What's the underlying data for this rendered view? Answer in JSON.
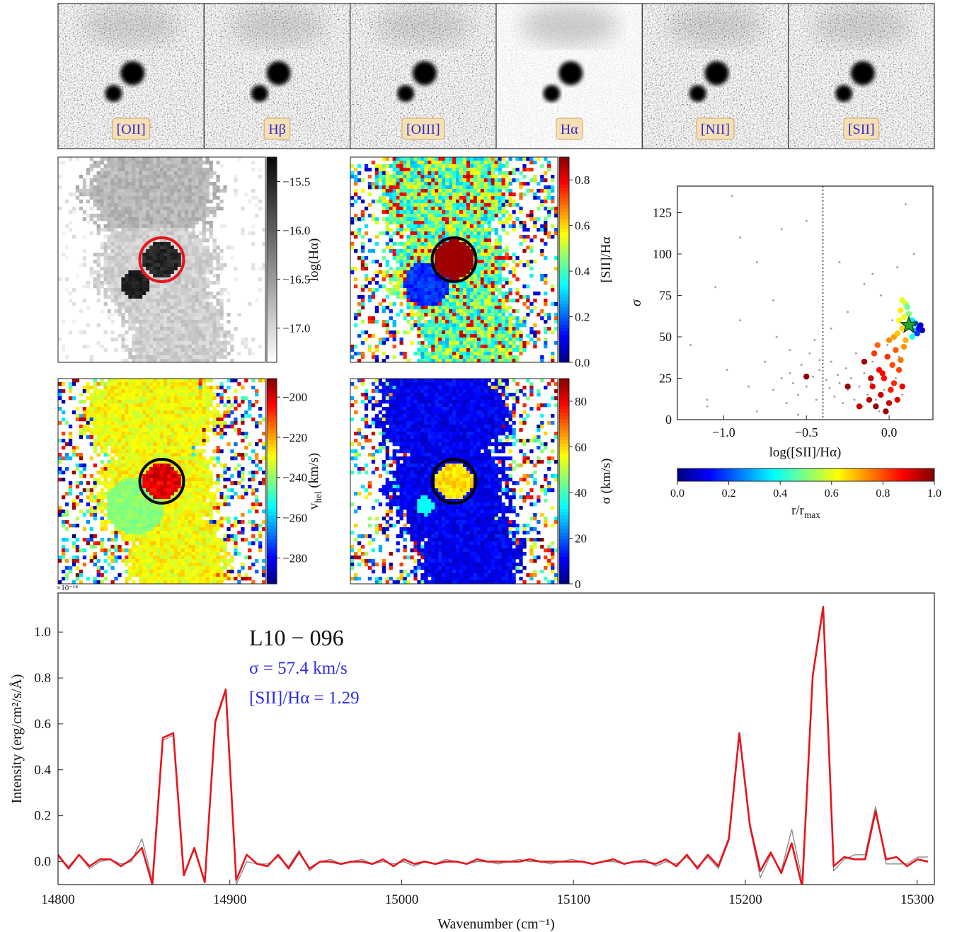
{
  "chart_data": [
    {
      "type": "images",
      "labels": [
        "[OII]",
        "Hβ",
        "[OIII]",
        "Hα",
        "[NII]",
        "[SII]"
      ]
    },
    {
      "type": "map",
      "cmap": "Greys",
      "marker_color": "#e8141c",
      "colorbar_label": "log(Hα)",
      "ylim": [
        -17.35,
        -15.25
      ],
      "yticks": [
        {
          "value": -15.5,
          "label": "−15.5"
        },
        {
          "value": -16,
          "label": "−16.0"
        },
        {
          "value": -16.5,
          "label": "−16.5"
        },
        {
          "value": -17,
          "label": "−17.0"
        }
      ]
    },
    {
      "type": "map",
      "cmap": "jet",
      "marker_color": "#000000",
      "colorbar_label": "[SII]/Hα",
      "ylim": [
        0,
        0.9
      ],
      "yticks": [
        {
          "value": 0,
          "label": "0.0"
        },
        0.2,
        0.4,
        0.6,
        0.8
      ]
    },
    {
      "type": "map",
      "cmap": "jet",
      "marker_color": "#000000",
      "colorbar_label": "v",
      "colorbar_label_sub": "hel",
      "colorbar_label_tail": " (km/s)",
      "ylim": [
        -292.9,
        -190.8
      ],
      "yticks": [
        {
          "value": -200,
          "label": "−200"
        },
        {
          "value": -220,
          "label": "−220"
        },
        {
          "value": -240,
          "label": "−240"
        },
        {
          "value": -260,
          "label": "−260"
        },
        {
          "value": -280,
          "label": "−280"
        }
      ]
    },
    {
      "type": "map",
      "cmap": "jet",
      "marker_color": "#000000",
      "colorbar_label": "σ (km/s)",
      "ylim": [
        0,
        89.9
      ],
      "yticks": [
        0,
        20,
        40,
        60,
        80
      ]
    },
    {
      "type": "scatter",
      "xlabel": "log([SII]/Hα)",
      "ylabel": "σ",
      "xlim": [
        -1.28,
        0.265
      ],
      "ylim": [
        0,
        141
      ],
      "xticks": [
        {
          "value": -1,
          "label": "−1.0"
        },
        {
          "value": -0.5,
          "label": "−0.5"
        },
        {
          "value": 0,
          "label": "0.0"
        }
      ],
      "yticks": [
        0,
        25,
        50,
        75,
        100,
        125
      ],
      "vline": -0.4,
      "background": {
        "color": "#a3a3a3",
        "x": [
          -1.2,
          -1.1,
          -1.05,
          -0.98,
          -0.9,
          -0.85,
          -0.8,
          -0.75,
          -0.7,
          -0.68,
          -0.65,
          -0.62,
          -0.6,
          -0.58,
          -0.55,
          -0.53,
          -0.5,
          -0.48,
          -0.46,
          -0.44,
          -0.42,
          -0.4,
          -0.38,
          -0.36,
          -0.35,
          -0.33,
          -0.31,
          -0.3,
          -0.28,
          -0.26,
          -0.25,
          -0.23,
          -0.21,
          -0.2,
          -0.18,
          -0.16,
          -0.15,
          -0.13,
          -0.11,
          -0.1,
          -0.08,
          -0.06,
          -0.05,
          -0.03,
          -0.01,
          0.0,
          0.02,
          0.04,
          0.06,
          0.08,
          -0.9,
          -0.7,
          -0.5,
          -0.3,
          -0.1,
          0.1,
          -1.1,
          -0.8,
          -0.6,
          -0.45,
          -0.25,
          -0.05,
          0.15,
          -0.95,
          -0.65,
          -0.35,
          -0.15,
          0.05,
          -0.55,
          -0.42
        ],
        "y": [
          45,
          12,
          80,
          30,
          60,
          20,
          95,
          35,
          18,
          50,
          25,
          10,
          28,
          22,
          15,
          33,
          20,
          40,
          26,
          12,
          30,
          8,
          24,
          19,
          35,
          14,
          27,
          22,
          10,
          31,
          18,
          25,
          12,
          40,
          20,
          8,
          28,
          15,
          22,
          35,
          12,
          5,
          30,
          18,
          45,
          10,
          60,
          25,
          38,
          15,
          110,
          72,
          120,
          95,
          88,
          130,
          8,
          5,
          42,
          48,
          65,
          75,
          100,
          135,
          115,
          55,
          82,
          92,
          3,
          36
        ]
      },
      "points": {
        "cmap": "jet",
        "x": [
          -0.12,
          -0.1,
          -0.08,
          -0.06,
          -0.05,
          -0.03,
          -0.02,
          0.0,
          0.01,
          0.03,
          -0.15,
          -0.09,
          -0.04,
          0.02,
          0.05,
          -0.07,
          -0.01,
          0.04,
          0.06,
          0.08,
          -0.11,
          0.0,
          0.03,
          0.07,
          0.09,
          0.05,
          0.08,
          0.1,
          0.06,
          0.09,
          0.11,
          0.07,
          0.1,
          0.12,
          0.08,
          0.11,
          0.13,
          0.14,
          0.15,
          0.16,
          0.17,
          0.18,
          0.19,
          0.2,
          0.14,
          -0.5,
          -0.25,
          -0.18
        ],
        "y": [
          12,
          20,
          8,
          30,
          15,
          25,
          5,
          10,
          18,
          22,
          35,
          40,
          28,
          33,
          12,
          45,
          38,
          42,
          30,
          20,
          25,
          48,
          50,
          36,
          44,
          52,
          55,
          48,
          60,
          62,
          58,
          66,
          70,
          64,
          72,
          68,
          56,
          60,
          54,
          58,
          52,
          55,
          57,
          54,
          50,
          26,
          20,
          8
        ],
        "c": [
          0.95,
          0.9,
          0.98,
          0.88,
          0.92,
          0.86,
          0.97,
          0.93,
          0.85,
          0.84,
          0.96,
          0.82,
          0.87,
          0.8,
          0.91,
          0.78,
          0.83,
          0.79,
          0.81,
          0.89,
          0.94,
          0.74,
          0.72,
          0.76,
          0.73,
          0.68,
          0.66,
          0.7,
          0.62,
          0.6,
          0.58,
          0.64,
          0.56,
          0.5,
          0.6,
          0.48,
          0.42,
          0.36,
          0.3,
          0.22,
          0.18,
          0.12,
          0.08,
          0.05,
          0.4,
          0.99,
          0.97,
          0.93
        ]
      },
      "star": {
        "x": 0.12,
        "y": 57,
        "color": "#2ca02c"
      },
      "colorbar": {
        "label": "r/r",
        "label_sub": "max",
        "lim": [
          0,
          1
        ],
        "ticks": [
          {
            "value": 0,
            "label": "0.0"
          },
          0.2,
          0.4,
          0.6,
          0.8,
          {
            "value": 1,
            "label": "1.0"
          }
        ]
      }
    },
    {
      "type": "line",
      "xlabel": "Wavenumber (cm⁻¹)",
      "ylabel": "Intensity (erg/cm²/s/Å)",
      "y_offset_label": "×10⁻¹⁴",
      "xlim": [
        14800,
        15310
      ],
      "ylim": [
        -0.1,
        1.17
      ],
      "xticks": [
        14800,
        14900,
        15000,
        15100,
        15200,
        15300
      ],
      "yticks": [
        {
          "value": 0,
          "label": "0.0"
        },
        0.2,
        0.4,
        0.6,
        0.8,
        {
          "value": 1,
          "label": "1.0"
        }
      ],
      "annotations": [
        {
          "text": "L10 − 096",
          "color": "#111111"
        },
        {
          "text": "σ = 57.4 km/s",
          "color": "#2b2bea"
        },
        {
          "text": "[SII]/Hα = 1.29",
          "color": "#2b2bea"
        }
      ],
      "x": [
        14800.0,
        14806.1,
        14812.2,
        14818.3,
        14824.4,
        14830.5,
        14836.6,
        14842.7,
        14848.8,
        14854.9,
        14861.0,
        14867.1,
        14873.2,
        14879.3,
        14885.4,
        14891.5,
        14897.6,
        14903.7,
        14909.8,
        14915.9,
        14922.0,
        14928.1,
        14934.2,
        14940.3,
        14946.4,
        14952.5,
        14958.6,
        14964.7,
        14970.8,
        14976.9,
        14983.0,
        14989.1,
        14995.2,
        15001.3,
        15007.4,
        15013.5,
        15019.6,
        15025.7,
        15031.8,
        15037.9,
        15044.0,
        15050.1,
        15056.2,
        15062.3,
        15068.4,
        15074.5,
        15080.6,
        15086.7,
        15092.8,
        15098.9,
        15105.0,
        15111.1,
        15117.2,
        15123.3,
        15129.4,
        15135.5,
        15141.6,
        15147.7,
        15153.8,
        15159.9,
        15166.0,
        15172.1,
        15178.2,
        15184.3,
        15190.4,
        15196.5,
        15202.6,
        15208.7,
        15214.8,
        15220.9,
        15227.0,
        15233.1,
        15239.2,
        15245.3,
        15251.4,
        15257.5,
        15263.6,
        15269.7,
        15275.8,
        15281.9,
        15288.0,
        15294.1,
        15300.2,
        15306.3
      ],
      "series": [
        {
          "color": "#8c8c8c",
          "values": [
            0.02,
            -0.02,
            0.03,
            -0.03,
            0.0,
            0.01,
            -0.01,
            0.0,
            0.1,
            -0.08,
            0.53,
            0.55,
            -0.05,
            0.05,
            -0.08,
            0.6,
            0.74,
            -0.1,
            0.0,
            -0.01,
            -0.01,
            0.02,
            -0.02,
            0.05,
            -0.04,
            0.0,
            0.01,
            -0.01,
            0.0,
            0.01,
            -0.01,
            0.0,
            -0.01,
            0.0,
            -0.02,
            0.0,
            -0.01,
            0.01,
            0.0,
            -0.01,
            0.0,
            0.0,
            -0.01,
            0.0,
            0.01,
            0.0,
            0.0,
            -0.01,
            0.0,
            0.01,
            0.0,
            -0.01,
            0.0,
            0.0,
            -0.01,
            0.0,
            0.01,
            -0.02,
            0.0,
            -0.01,
            0.02,
            -0.02,
            0.02,
            -0.03,
            0.09,
            0.55,
            0.15,
            -0.07,
            0.03,
            -0.04,
            0.14,
            -0.08,
            0.8,
            1.1,
            -0.04,
            0.01,
            0.03,
            0.03,
            0.24,
            -0.01,
            -0.01,
            -0.01,
            0.02,
            0.02
          ]
        },
        {
          "color": "#e8141c",
          "values": [
            0.03,
            -0.03,
            0.03,
            -0.02,
            0.01,
            0.01,
            -0.02,
            0.01,
            0.06,
            -0.1,
            0.54,
            0.56,
            -0.06,
            0.06,
            -0.09,
            0.61,
            0.75,
            -0.08,
            0.03,
            -0.01,
            -0.02,
            0.03,
            -0.03,
            0.04,
            -0.03,
            0.0,
            0.0,
            -0.01,
            0.0,
            0.0,
            -0.01,
            0.01,
            -0.02,
            0.01,
            -0.01,
            0.0,
            -0.01,
            0.0,
            0.0,
            -0.01,
            0.01,
            0.0,
            0.0,
            0.0,
            0.0,
            0.01,
            0.0,
            0.0,
            0.0,
            0.0,
            0.0,
            -0.01,
            0.0,
            0.01,
            -0.01,
            0.0,
            0.0,
            -0.01,
            0.01,
            -0.02,
            0.03,
            -0.03,
            0.03,
            -0.02,
            0.1,
            0.56,
            0.16,
            -0.04,
            0.04,
            -0.05,
            0.08,
            -0.11,
            0.81,
            1.11,
            -0.02,
            0.02,
            0.01,
            0.01,
            0.22,
            0.01,
            0.02,
            -0.02,
            0.01,
            0.0
          ]
        }
      ]
    }
  ]
}
